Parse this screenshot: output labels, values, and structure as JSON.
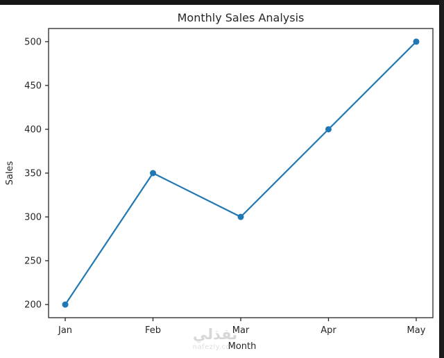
{
  "window": {
    "top_border_color": "#161616",
    "right_border_color": "#1b1b1b",
    "figure_background": "#ffffff"
  },
  "chart_data": {
    "type": "line",
    "title": "Monthly Sales Analysis",
    "xlabel": "Month",
    "ylabel": "Sales",
    "categories": [
      "Jan",
      "Feb",
      "Mar",
      "Apr",
      "May"
    ],
    "series": [
      {
        "name": "Sales",
        "values": [
          200,
          350,
          300,
          400,
          500
        ]
      }
    ],
    "yticks": [
      200,
      250,
      300,
      350,
      400,
      450,
      500
    ],
    "ylim": [
      185,
      515
    ],
    "grid": false,
    "legend_position": "none",
    "line_color": "#1f77b4",
    "marker": "circle",
    "spine_color": "#262626"
  },
  "watermark": {
    "logo_text": "نفذلي",
    "domain": "nafezly.com"
  }
}
